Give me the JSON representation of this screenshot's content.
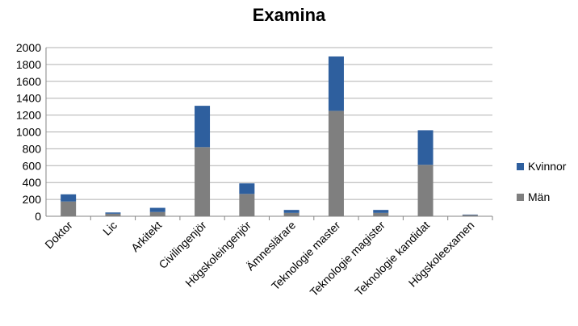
{
  "chart_data": {
    "type": "bar",
    "stacked": true,
    "title": "Examina",
    "xlabel": "",
    "ylabel": "",
    "ylim": [
      0,
      2000
    ],
    "yticks": [
      0,
      200,
      400,
      600,
      800,
      1000,
      1200,
      1400,
      1600,
      1800,
      2000
    ],
    "grid": true,
    "legend_position": "right",
    "categories": [
      "Doktor",
      "Lic",
      "Arkitekt",
      "Civilingenjör",
      "Högskoleingenjör",
      "Ämneslärare",
      "Teknologie master",
      "Teknologie magister",
      "Teknologie kandidat",
      "Högskoleexamen"
    ],
    "series": [
      {
        "name": "Män",
        "color": "#7f7f7f",
        "values": [
          175,
          30,
          50,
          820,
          265,
          40,
          1250,
          40,
          610,
          15
        ]
      },
      {
        "name": "Kvinnor",
        "color": "#2e5f9e",
        "values": [
          85,
          15,
          50,
          490,
          125,
          35,
          645,
          35,
          410,
          5
        ]
      }
    ]
  }
}
